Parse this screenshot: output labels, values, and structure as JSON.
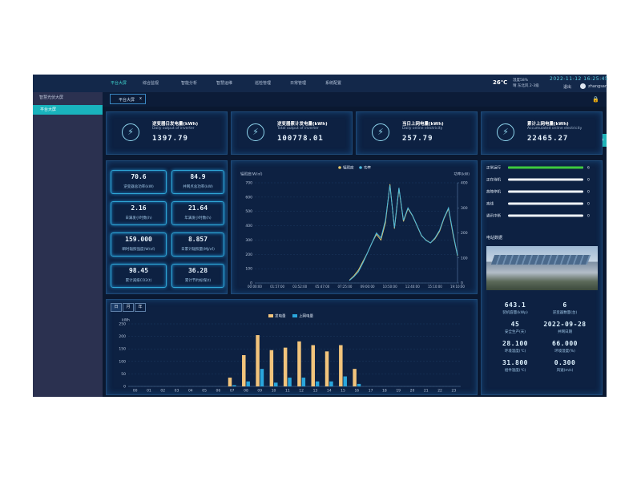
{
  "nav": {
    "items": [
      "平台大屏",
      "综合监视",
      "智能分析",
      "智慧运维",
      "巡检管理",
      "日常管理",
      "系统配置"
    ],
    "weather_temp": "26℃",
    "weather_lines": [
      "湿度58%",
      "晴 东北风 2-3级"
    ],
    "datetime": "2022-11-12 16:25:45",
    "logout": "退出",
    "user": "zhangsan"
  },
  "sidebar": {
    "title": "智慧光伏大屏",
    "items": [
      "平台大屏"
    ]
  },
  "tab": {
    "label": "平台大屏",
    "close": "x"
  },
  "kpis": [
    {
      "title": "逆变器日发电量(kWh)",
      "subtitle": "Daily output of inverter",
      "value": "1397.79"
    },
    {
      "title": "逆变器累计发电量(kWh)",
      "subtitle": "Total output of inverter",
      "value": "100778.01"
    },
    {
      "title": "当日上网电量(kWh)",
      "subtitle": "Daily online electricity",
      "value": "257.79"
    },
    {
      "title": "累计上网电量(kWh)",
      "subtitle": "Accumulated online electricity",
      "value": "22465.27"
    }
  ],
  "metrics": [
    {
      "value": "70.6",
      "label": "逆变器总功率(kW)"
    },
    {
      "value": "84.9",
      "label": "并网点总功率(kW)"
    },
    {
      "value": "2.16",
      "label": "日满发小时数(h)"
    },
    {
      "value": "21.64",
      "label": "年满发小时数(h)"
    },
    {
      "value": "159.000",
      "label": "瞬时辐照强度(W/㎡)"
    },
    {
      "value": "8.857",
      "label": "日累计辐照量(MJ/㎡)"
    },
    {
      "value": "98.45",
      "label": "累计减排CO2(t)"
    },
    {
      "value": "36.28",
      "label": "累计节约标煤(t)"
    }
  ],
  "bar_tabs": [
    "日",
    "月",
    "年"
  ],
  "station": {
    "title": "电站数据",
    "items": [
      {
        "value": "643.1",
        "label": "装机容量(kWp)"
      },
      {
        "value": "6",
        "label": "逆变器数量(台)"
      },
      {
        "value": "45",
        "label": "安全生产(天)"
      },
      {
        "value": "2022-09-28",
        "label": "并网日期"
      },
      {
        "value": "28.100",
        "label": "环境温度(℃)"
      },
      {
        "value": "66.000",
        "label": "环境湿度(%)"
      },
      {
        "value": "31.800",
        "label": "组件温度(℃)"
      },
      {
        "value": "0.300",
        "label": "风速(m/s)"
      }
    ]
  },
  "chart_data": [
    {
      "type": "line",
      "y_label": "辐照度(W/㎡)",
      "y2_label": "功率(kW)",
      "categories": [
        "00:00:00",
        null,
        null,
        null,
        null,
        "01:57:00",
        null,
        null,
        null,
        null,
        "03:52:00",
        null,
        null,
        null,
        null,
        "05:47:00",
        null,
        null,
        null,
        null,
        "07:25:00",
        null,
        null,
        null,
        null,
        "09:00:00",
        null,
        null,
        null,
        null,
        "10:50:00",
        null,
        null,
        null,
        null,
        "12:40:00",
        null,
        null,
        null,
        null,
        "15:10:00",
        null,
        null,
        null,
        null,
        "19:10:00"
      ],
      "series": [
        {
          "name": "辐照度",
          "color": "#e2c56a",
          "values": [
            null,
            null,
            null,
            null,
            null,
            null,
            null,
            null,
            null,
            null,
            null,
            null,
            null,
            null,
            null,
            null,
            null,
            null,
            null,
            null,
            null,
            20,
            50,
            90,
            150,
            210,
            280,
            340,
            300,
            420,
            690,
            380,
            660,
            430,
            520,
            470,
            400,
            330,
            300,
            280,
            310,
            360,
            450,
            520,
            340,
            190
          ]
        },
        {
          "name": "功率",
          "color": "#4cb8dc",
          "axis": "y2",
          "values": [
            null,
            null,
            null,
            null,
            null,
            null,
            null,
            null,
            null,
            null,
            null,
            null,
            null,
            null,
            null,
            null,
            null,
            null,
            null,
            null,
            null,
            10,
            25,
            45,
            80,
            120,
            160,
            200,
            180,
            250,
            390,
            220,
            380,
            250,
            300,
            270,
            230,
            190,
            170,
            160,
            180,
            210,
            260,
            300,
            200,
            110
          ]
        }
      ],
      "ylim": [
        0,
        700
      ],
      "yticks": [
        0,
        100,
        200,
        300,
        400,
        500,
        600,
        700
      ],
      "y2lim": [
        0,
        400
      ],
      "y2ticks": [
        0,
        100,
        200,
        300,
        400
      ]
    },
    {
      "type": "bar",
      "y_label": "kWh",
      "categories": [
        "00",
        "01",
        "02",
        "03",
        "04",
        "05",
        "06",
        "07",
        "08",
        "09",
        "10",
        "11",
        "12",
        "13",
        "14",
        "15",
        "16",
        "17",
        "18",
        "19",
        "20",
        "21",
        "22",
        "23"
      ],
      "series": [
        {
          "name": "发电量",
          "color": "#f2c47c",
          "values": [
            0,
            0,
            0,
            0,
            0,
            0,
            0,
            35,
            125,
            205,
            145,
            155,
            180,
            165,
            140,
            165,
            70,
            0,
            0,
            0,
            0,
            0,
            0,
            0
          ]
        },
        {
          "name": "上网电量",
          "color": "#2aa6dc",
          "values": [
            0,
            0,
            0,
            0,
            0,
            0,
            0,
            5,
            20,
            70,
            15,
            35,
            35,
            20,
            20,
            40,
            10,
            0,
            0,
            0,
            0,
            0,
            0,
            0
          ]
        }
      ],
      "ylim": [
        0,
        250
      ],
      "yticks": [
        0,
        50,
        100,
        150,
        200,
        250
      ]
    },
    {
      "type": "progress",
      "categories": [
        "正常运行",
        "正在待机",
        "故障停机",
        "离线",
        "通讯中断"
      ],
      "values": [
        6,
        0,
        0,
        0,
        0
      ],
      "xlim": [
        0,
        6
      ],
      "color": "#3ecb3e"
    }
  ]
}
